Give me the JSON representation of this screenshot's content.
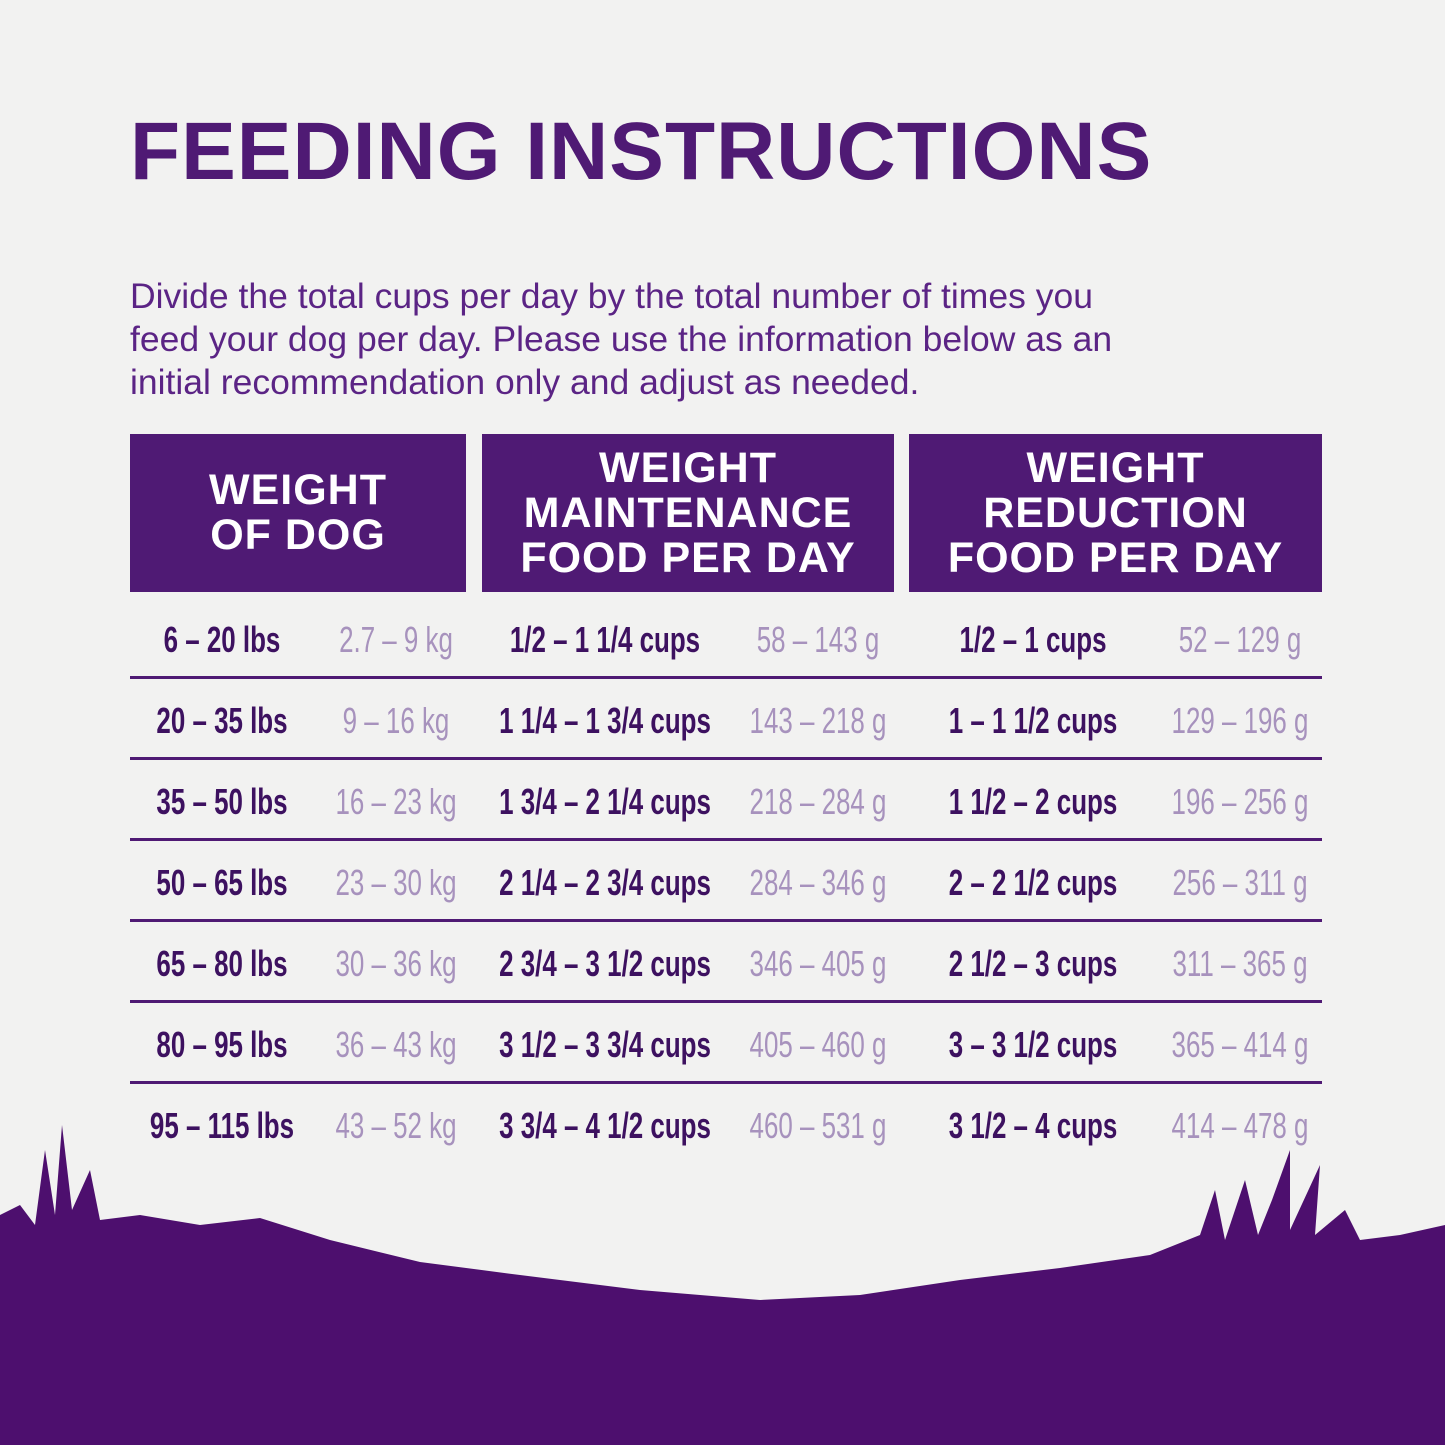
{
  "title": "FEEDING INSTRUCTIONS",
  "intro": [
    "Divide the total cups per day by the total number of times you",
    "feed your dog per day. Please use the information below as an",
    "initial recommendation only and adjust as needed."
  ],
  "table": {
    "headers": [
      [
        "WEIGHT",
        "OF DOG"
      ],
      [
        "WEIGHT",
        "MAINTENANCE",
        "FOOD PER DAY"
      ],
      [
        "WEIGHT",
        "REDUCTION",
        "FOOD PER DAY"
      ]
    ],
    "rows": [
      [
        "6 – 20 lbs",
        "2.7 – 9 kg",
        "1/2 – 1 1/4 cups",
        "58 – 143 g",
        "1/2 – 1 cups",
        "52 – 129 g"
      ],
      [
        "20 – 35 lbs",
        "9 – 16 kg",
        "1 1/4 – 1 3/4 cups",
        "143 – 218 g",
        "1 – 1 1/2 cups",
        "129 – 196 g"
      ],
      [
        "35 – 50 lbs",
        "16 – 23 kg",
        "1 3/4 – 2 1/4 cups",
        "218 – 284 g",
        "1 1/2 – 2 cups",
        "196 – 256 g"
      ],
      [
        "50 – 65 lbs",
        "23 – 30 kg",
        "2 1/4 – 2 3/4 cups",
        "284 – 346 g",
        "2 – 2 1/2 cups",
        "256 – 311 g"
      ],
      [
        "65 – 80 lbs",
        "30 – 36 kg",
        "2 3/4 – 3 1/2 cups",
        "346 – 405 g",
        "2 1/2 – 3 cups",
        "311 – 365 g"
      ],
      [
        "80 – 95 lbs",
        "36 – 43 kg",
        "3 1/2 – 3 3/4 cups",
        "405 – 460 g",
        "3 – 3 1/2 cups",
        "365 – 414 g"
      ],
      [
        "95 – 115 lbs",
        "43 – 52 kg",
        "3 3/4 – 4 1/2 cups",
        "460 – 531 g",
        "3 1/2 – 4 cups",
        "414 – 478 g"
      ]
    ]
  }
}
